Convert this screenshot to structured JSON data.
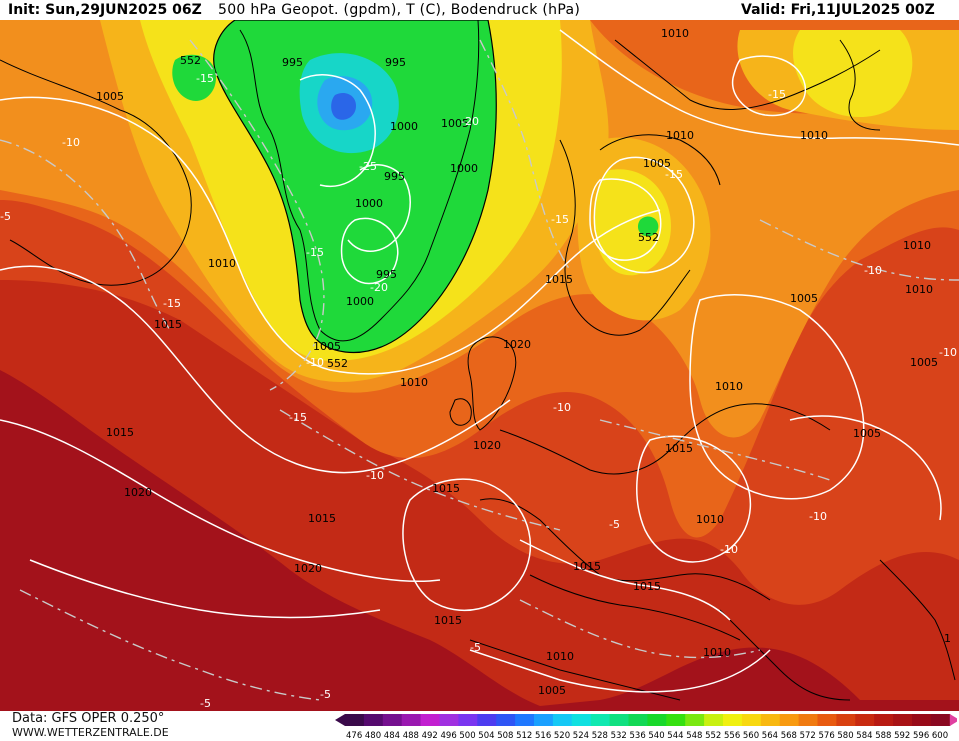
{
  "header": {
    "init": "Init: Sun,29JUN2025 06Z",
    "title": "500 hPa Geopot. (gpdm), T (C), Bodendruck (hPa)",
    "valid": "Valid: Fri,11JUL2025 00Z"
  },
  "footer": {
    "data_source": "Data: GFS OPER 0.250°",
    "website": "WWW.WETTERZENTRALE.DE"
  },
  "colorscale": {
    "values": [
      "476",
      "480",
      "484",
      "488",
      "492",
      "496",
      "500",
      "504",
      "508",
      "512",
      "516",
      "520",
      "524",
      "528",
      "532",
      "536",
      "540",
      "544",
      "548",
      "552",
      "556",
      "560",
      "564",
      "568",
      "572",
      "576",
      "580",
      "584",
      "588",
      "592",
      "596",
      "600"
    ],
    "colors": [
      "#3a0a4a",
      "#550a6e",
      "#75108f",
      "#9a18b0",
      "#c21fd0",
      "#a030e0",
      "#7a35f0",
      "#4d3cf0",
      "#2f55f5",
      "#1f78ff",
      "#1aa0ff",
      "#15c8f5",
      "#10e0e0",
      "#10e8b0",
      "#10e080",
      "#12d855",
      "#18d82a",
      "#35e010",
      "#7ae810",
      "#c8f010",
      "#f0f010",
      "#f8d810",
      "#f8b810",
      "#f89a10",
      "#f07a10",
      "#e85a10",
      "#d84010",
      "#c82a10",
      "#b81a12",
      "#a81215",
      "#980a18",
      "#8a0820"
    ]
  },
  "map_colors": {
    "darkred": "#a3121b",
    "red": "#c32a16",
    "orangered": "#d8431a",
    "orange": "#e8651a",
    "lightorange": "#f28f1d",
    "amber": "#f6b41a",
    "yellow": "#f5e21a",
    "green": "#1fd93a",
    "cyan": "#17d6c8",
    "blue": "#2a86f0",
    "isobar": "#ffffff",
    "isotherm": "#c9c9c9",
    "coast": "#000000"
  },
  "pressure_labels": [
    "552",
    "995",
    "995",
    "1005",
    "1000",
    "1005",
    "1000",
    "995",
    "1000",
    "995",
    "1000",
    "1010",
    "1005",
    "1010",
    "1010",
    "1015",
    "1015",
    "1020",
    "1015",
    "1015",
    "1020",
    "1010",
    "1020",
    "1015",
    "1015",
    "1020",
    "1010",
    "1005",
    "1010",
    "1010",
    "1005",
    "1005",
    "1010",
    "1005",
    "1015",
    "1010",
    "1015",
    "1015",
    "1010",
    "1010",
    "1005",
    "552",
    "552",
    "1"
  ],
  "temperature_labels": [
    "-15",
    "-15",
    "-10",
    "-25",
    "-20",
    "-20",
    "-15",
    "-15",
    "-15",
    "-10",
    "-10",
    "-10",
    "-15",
    "-15",
    "-10",
    "-10",
    "-10",
    "-10",
    "-5",
    "-5",
    "-5",
    "-5",
    "-5"
  ]
}
